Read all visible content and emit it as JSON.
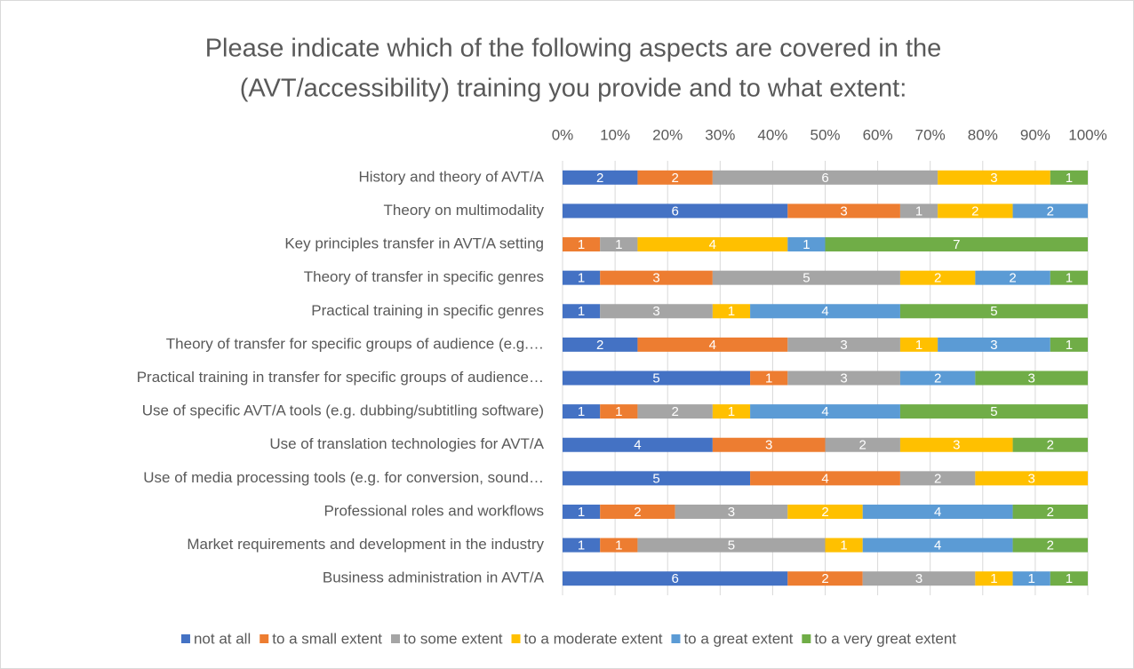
{
  "chart_data": {
    "type": "stacked_percent_barh",
    "title": [
      "Please indicate which of the following aspects are covered in the",
      "(AVT/accessibility) training you provide and to what extent:"
    ],
    "categories": [
      "History and theory of AVT/A",
      "Theory on multimodality",
      "Key principles transfer in AVT/A setting",
      "Theory of transfer in specific genres",
      "Practical training in specific genres",
      "Theory of transfer for specific groups of audience (e.g.…",
      "Practical training in transfer for specific groups of audience…",
      "Use of specific AVT/A tools (e.g. dubbing/subtitling software)",
      "Use of translation technologies for AVT/A",
      "Use of media processing tools (e.g. for conversion, sound…",
      "Professional roles and workflows",
      "Market requirements and development in the industry",
      "Business administration in AVT/A"
    ],
    "series": [
      {
        "name": "not at all",
        "color": "#4472c4",
        "values": [
          2,
          6,
          0,
          1,
          1,
          2,
          5,
          1,
          4,
          5,
          1,
          1,
          6
        ]
      },
      {
        "name": "to a small extent",
        "color": "#ed7d31",
        "values": [
          2,
          3,
          1,
          3,
          0,
          4,
          1,
          1,
          3,
          4,
          2,
          1,
          2
        ]
      },
      {
        "name": "to some extent",
        "color": "#a5a5a5",
        "values": [
          6,
          1,
          1,
          5,
          3,
          3,
          3,
          2,
          2,
          2,
          3,
          5,
          3
        ]
      },
      {
        "name": "to a moderate extent",
        "color": "#ffc000",
        "values": [
          3,
          2,
          4,
          2,
          1,
          1,
          0,
          1,
          3,
          3,
          2,
          1,
          1
        ]
      },
      {
        "name": "to a great extent",
        "color": "#5b9bd5",
        "values": [
          0,
          2,
          1,
          2,
          4,
          3,
          2,
          4,
          0,
          0,
          4,
          4,
          1
        ]
      },
      {
        "name": "to a very great extent",
        "color": "#70ad47",
        "values": [
          1,
          0,
          7,
          1,
          5,
          1,
          3,
          5,
          2,
          0,
          2,
          2,
          1
        ]
      }
    ],
    "xlim": [
      0,
      100
    ],
    "xticks": [
      {
        "value": 0,
        "label": "0%"
      },
      {
        "value": 10,
        "label": "10%"
      },
      {
        "value": 20,
        "label": "20%"
      },
      {
        "value": 30,
        "label": "30%"
      },
      {
        "value": 40,
        "label": "40%"
      },
      {
        "value": 50,
        "label": "50%"
      },
      {
        "value": 60,
        "label": "60%"
      },
      {
        "value": 70,
        "label": "70%"
      },
      {
        "value": 80,
        "label": "80%"
      },
      {
        "value": 90,
        "label": "90%"
      },
      {
        "value": 100,
        "label": "100%"
      }
    ],
    "grid": true,
    "legend": "bottom"
  }
}
